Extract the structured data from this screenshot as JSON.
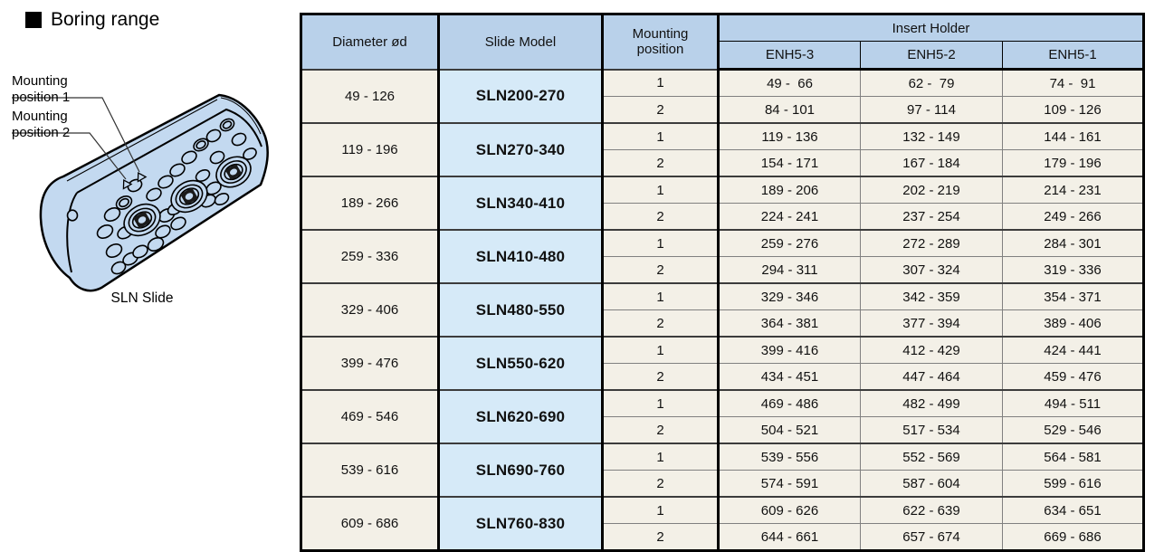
{
  "title": "Boring range",
  "illustration": {
    "caption": "SLN Slide",
    "label_1": "Mounting\nposition 1",
    "label_2": "Mounting\nposition 2"
  },
  "table": {
    "header": {
      "diameter": "Diameter ød",
      "slide_model": "Slide Model",
      "mounting_position": "Mounting\nposition",
      "insert_holder": "Insert Holder",
      "holder_columns": [
        "ENH5-3",
        "ENH5-2",
        "ENH5-1"
      ]
    },
    "groups": [
      {
        "diameter": "49 - 126",
        "model": "SLN200-270",
        "rows": [
          {
            "position": "1",
            "holders": [
              "49 -  66",
              "62 -  79",
              "74 -  91"
            ]
          },
          {
            "position": "2",
            "holders": [
              "84 - 101",
              "97 - 114",
              "109 - 126"
            ]
          }
        ]
      },
      {
        "diameter": "119 - 196",
        "model": "SLN270-340",
        "rows": [
          {
            "position": "1",
            "holders": [
              "119 - 136",
              "132 - 149",
              "144 - 161"
            ]
          },
          {
            "position": "2",
            "holders": [
              "154 - 171",
              "167 - 184",
              "179 - 196"
            ]
          }
        ]
      },
      {
        "diameter": "189 - 266",
        "model": "SLN340-410",
        "rows": [
          {
            "position": "1",
            "holders": [
              "189 - 206",
              "202 - 219",
              "214 - 231"
            ]
          },
          {
            "position": "2",
            "holders": [
              "224 - 241",
              "237 - 254",
              "249 - 266"
            ]
          }
        ]
      },
      {
        "diameter": "259 - 336",
        "model": "SLN410-480",
        "rows": [
          {
            "position": "1",
            "holders": [
              "259 - 276",
              "272 - 289",
              "284 - 301"
            ]
          },
          {
            "position": "2",
            "holders": [
              "294 - 311",
              "307 - 324",
              "319 - 336"
            ]
          }
        ]
      },
      {
        "diameter": "329 - 406",
        "model": "SLN480-550",
        "rows": [
          {
            "position": "1",
            "holders": [
              "329 - 346",
              "342 - 359",
              "354 - 371"
            ]
          },
          {
            "position": "2",
            "holders": [
              "364 - 381",
              "377 - 394",
              "389 - 406"
            ]
          }
        ]
      },
      {
        "diameter": "399 - 476",
        "model": "SLN550-620",
        "rows": [
          {
            "position": "1",
            "holders": [
              "399 - 416",
              "412 - 429",
              "424 - 441"
            ]
          },
          {
            "position": "2",
            "holders": [
              "434 - 451",
              "447 - 464",
              "459 - 476"
            ]
          }
        ]
      },
      {
        "diameter": "469 - 546",
        "model": "SLN620-690",
        "rows": [
          {
            "position": "1",
            "holders": [
              "469 - 486",
              "482 - 499",
              "494 - 511"
            ]
          },
          {
            "position": "2",
            "holders": [
              "504 - 521",
              "517 - 534",
              "529 - 546"
            ]
          }
        ]
      },
      {
        "diameter": "539 - 616",
        "model": "SLN690-760",
        "rows": [
          {
            "position": "1",
            "holders": [
              "539 - 556",
              "552 - 569",
              "564 - 581"
            ]
          },
          {
            "position": "2",
            "holders": [
              "574 - 591",
              "587 - 604",
              "599 - 616"
            ]
          }
        ]
      },
      {
        "diameter": "609 - 686",
        "model": "SLN760-830",
        "rows": [
          {
            "position": "1",
            "holders": [
              "609 - 626",
              "622 - 639",
              "634 - 651"
            ]
          },
          {
            "position": "2",
            "holders": [
              "644 - 661",
              "657 - 674",
              "669 - 686"
            ]
          }
        ]
      }
    ]
  },
  "colors": {
    "header_bg": "#b9d1ea",
    "model_cell_bg": "#d6eaf8",
    "data_cell_bg": "#f3f0e7",
    "block_fill": "#c3d9f0",
    "border": "#000000"
  }
}
